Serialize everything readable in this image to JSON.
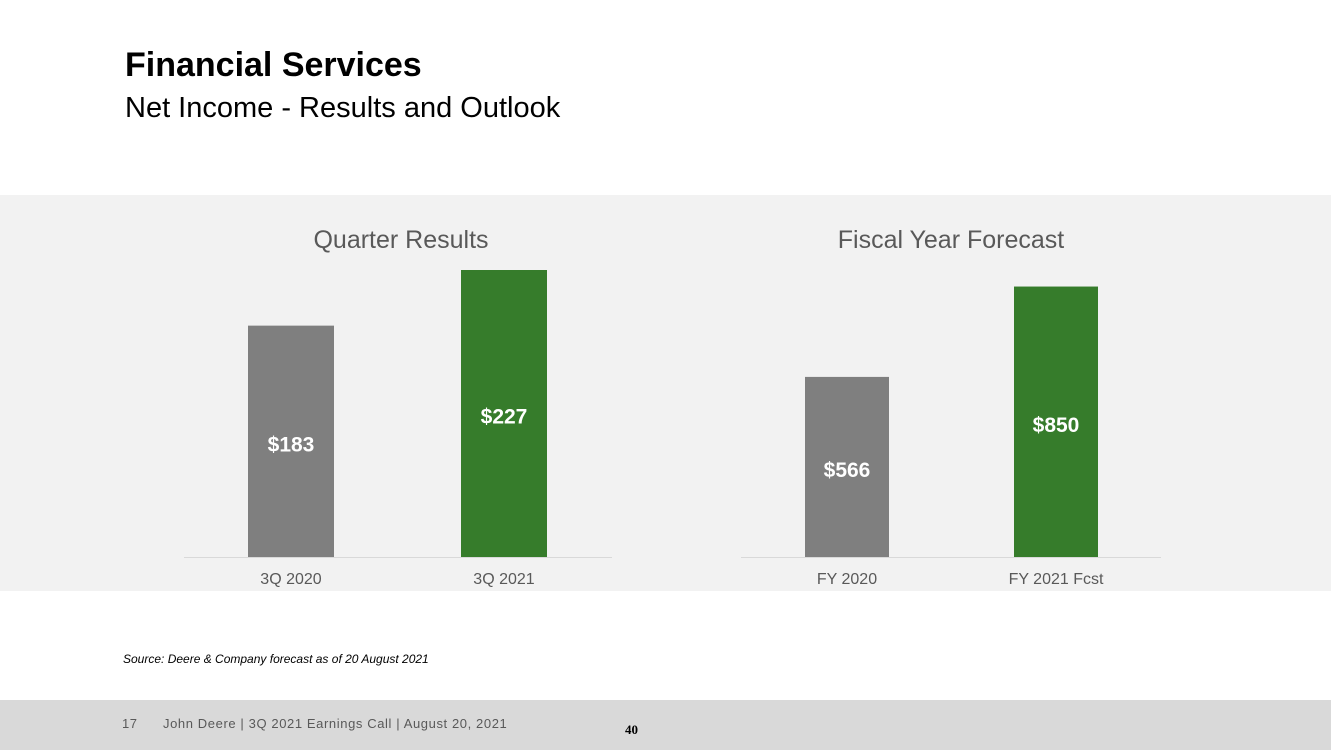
{
  "header": {
    "title": "Financial Services",
    "subtitle": "Net Income - Results and Outlook"
  },
  "chart_data": [
    {
      "type": "bar",
      "title": "Quarter Results",
      "categories": [
        "3Q 2020",
        "3Q 2021"
      ],
      "values": [
        183,
        227
      ],
      "value_labels": [
        "$183",
        "$227"
      ],
      "colors": [
        "#7f7f7f",
        "#367c2b"
      ],
      "ylim": [
        0,
        227
      ],
      "grid": false
    },
    {
      "type": "bar",
      "title": "Fiscal Year Forecast",
      "categories": [
        "FY 2020",
        "FY 2021 Fcst"
      ],
      "values": [
        566,
        850
      ],
      "value_labels": [
        "$566",
        "$850"
      ],
      "colors": [
        "#7f7f7f",
        "#367c2b"
      ],
      "ylim": [
        0,
        902
      ],
      "grid": false
    }
  ],
  "source": "Source: Deere & Company forecast as of 20 August 2021",
  "footer": {
    "page": "17",
    "text": "John Deere | 3Q 2021 Earnings Call | August 20, 2021",
    "number": "40"
  },
  "colors": {
    "accent": "#367c2b",
    "neutral": "#7f7f7f",
    "band": "#f2f2f2",
    "footer": "#d9d9d9"
  }
}
